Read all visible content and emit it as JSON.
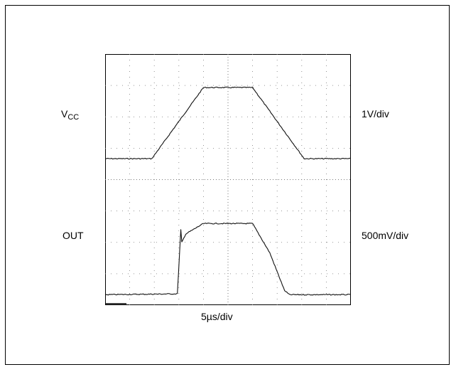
{
  "labels": {
    "top_channel_name": "V",
    "top_channel_sub": "CC",
    "bottom_channel_name": "OUT",
    "top_vertical_scale": "1V/div",
    "bottom_vertical_scale": "500mV/div",
    "time_scale": "5µs/div"
  },
  "chart_data": {
    "type": "line",
    "title": "",
    "xlabel": "5µs/div",
    "x_unit": "µs",
    "xlim": [
      0,
      50
    ],
    "grid": "dotted",
    "series": [
      {
        "name": "V",
        "subscript": "CC",
        "scale": "1V/div",
        "y_unit": "V",
        "ylim": [
          -1,
          5
        ],
        "x": [
          0,
          9.5,
          20,
          30,
          40.5,
          50
        ],
        "values": [
          0,
          0,
          3.4,
          3.4,
          0,
          0
        ]
      },
      {
        "name": "OUT",
        "scale": "500mV/div",
        "y_unit": "V",
        "ylim": [
          -0.25,
          2.75
        ],
        "x": [
          0,
          14.7,
          15.4,
          15.6,
          16.4,
          20,
          30,
          33.5,
          36.5,
          37.5,
          50
        ],
        "values": [
          0,
          0.02,
          1.55,
          1.25,
          1.45,
          1.7,
          1.7,
          1.0,
          0.1,
          0,
          0
        ]
      }
    ]
  }
}
